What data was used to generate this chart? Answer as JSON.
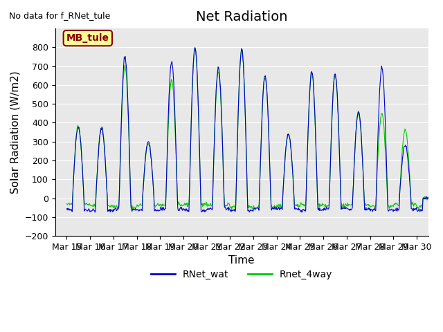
{
  "title": "Net Radiation",
  "xlabel": "Time",
  "ylabel": "Solar Radiation (W/m2)",
  "ylim": [
    -200,
    900
  ],
  "yticks": [
    -200,
    -100,
    0,
    100,
    200,
    300,
    400,
    500,
    600,
    700,
    800
  ],
  "x_tick_labels": [
    "Mar 15",
    "Mar 16",
    "Mar 17",
    "Mar 18",
    "Mar 19",
    "Mar 20",
    "Mar 21",
    "Mar 22",
    "Mar 23",
    "Mar 24",
    "Mar 25",
    "Mar 26",
    "Mar 27",
    "Mar 28",
    "Mar 29",
    "Mar 30"
  ],
  "no_data_text": "No data for f_RNet_tule",
  "legend_box_text": "MB_tule",
  "line1_color": "#0000cd",
  "line2_color": "#00cc00",
  "line1_label": "RNet_wat",
  "line2_label": "Rnet_4way",
  "bg_color": "#e8e8e8",
  "title_fontsize": 14,
  "axis_label_fontsize": 11,
  "tick_fontsize": 9,
  "day_peaks_wat": [
    380,
    370,
    750,
    300,
    720,
    800,
    690,
    790,
    650,
    340,
    670,
    660,
    460,
    690,
    280,
    0
  ],
  "day_peaks_4way": [
    380,
    380,
    700,
    290,
    630,
    790,
    670,
    790,
    640,
    340,
    660,
    650,
    450,
    450,
    360,
    0
  ]
}
